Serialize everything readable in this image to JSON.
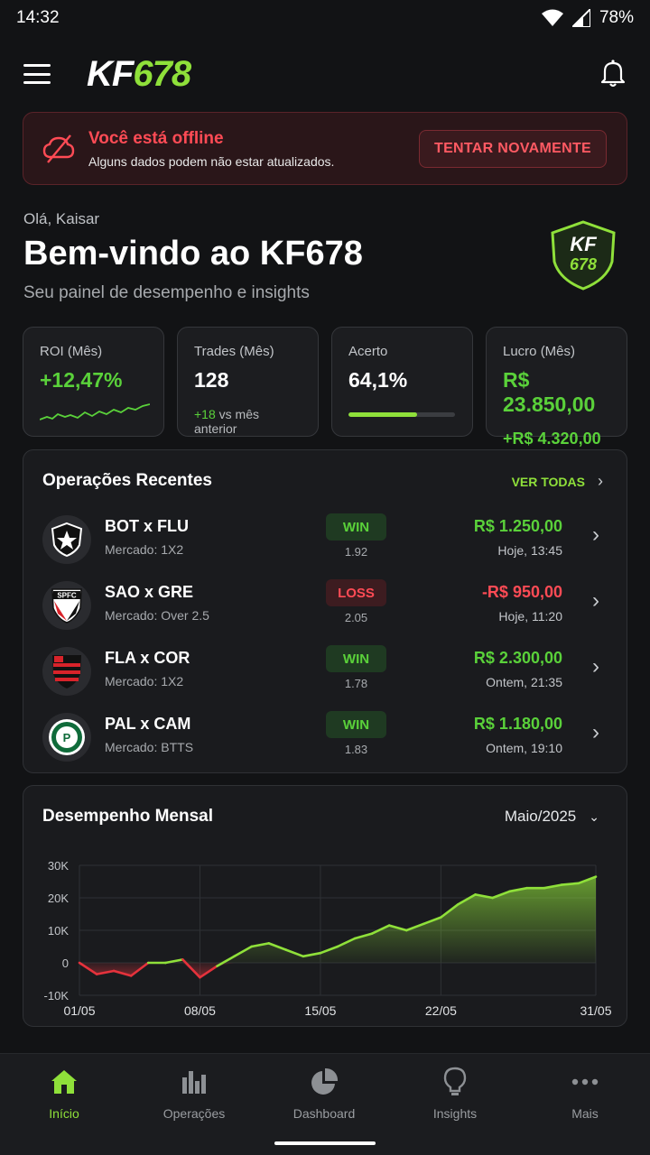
{
  "status": {
    "time": "14:32",
    "battery": "78%"
  },
  "header": {
    "logo_kf": "KF",
    "logo_num": "678"
  },
  "offline": {
    "title": "Você está offline",
    "subtitle": "Alguns dados podem não estar atualizados.",
    "retry_label": "TENTAR NOVAMENTE"
  },
  "welcome": {
    "greeting": "Olá, Kaisar",
    "title": "Bem-vindo ao KF678",
    "subtitle": "Seu painel de desempenho e insights",
    "badge_top": "KF",
    "badge_bottom": "678"
  },
  "stats": {
    "roi": {
      "label": "ROI (Mês)",
      "value": "+12,47%"
    },
    "trades": {
      "label": "Trades (Mês)",
      "value": "128",
      "delta": "+18",
      "delta_suffix": " vs mês anterior"
    },
    "accuracy": {
      "label": "Acerto",
      "value": "64,1%",
      "progress": 0.641
    },
    "profit": {
      "label": "Lucro (Mês)",
      "value": "R$ 23.850,00",
      "delta": "+R$ 4.320,00"
    }
  },
  "recent": {
    "title": "Operações Recentes",
    "see_all": "VER TODAS",
    "items": [
      {
        "match": "BOT x FLU",
        "market": "Mercado: 1X2",
        "result": "WIN",
        "odd": "1.92",
        "amount": "R$ 1.250,00",
        "time": "Hoje, 13:45"
      },
      {
        "match": "SAO x GRE",
        "market": "Mercado: Over 2.5",
        "result": "LOSS",
        "odd": "2.05",
        "amount": "-R$ 950,00",
        "time": "Hoje, 11:20",
        "crest_text": "SPFC"
      },
      {
        "match": "FLA x COR",
        "market": "Mercado: 1X2",
        "result": "WIN",
        "odd": "1.78",
        "amount": "R$ 2.300,00",
        "time": "Ontem, 21:35"
      },
      {
        "match": "PAL x CAM",
        "market": "Mercado: BTTS",
        "result": "WIN",
        "odd": "1.83",
        "amount": "R$ 1.180,00",
        "time": "Ontem, 19:10"
      }
    ]
  },
  "performance": {
    "title": "Desempenho Mensal",
    "month": "Maio/2025"
  },
  "chart_data": {
    "type": "area",
    "title": "Desempenho Mensal",
    "x": [
      1,
      2,
      3,
      4,
      5,
      6,
      7,
      8,
      9,
      10,
      11,
      12,
      13,
      14,
      15,
      16,
      17,
      18,
      19,
      20,
      21,
      22,
      23,
      24,
      25,
      26,
      27,
      28,
      29,
      30,
      31
    ],
    "values": [
      0,
      -3500,
      -2500,
      -4000,
      0,
      0,
      1000,
      -4500,
      -1000,
      2000,
      5000,
      6000,
      4000,
      2000,
      3000,
      5000,
      7500,
      9000,
      11500,
      10000,
      12000,
      14000,
      18000,
      21000,
      20000,
      22000,
      23000,
      23000,
      24000,
      24500,
      26500
    ],
    "xticks": [
      "01/05",
      "08/05",
      "15/05",
      "22/05",
      "31/05"
    ],
    "yticks": [
      "30K",
      "20K",
      "10K",
      "0",
      "-10K"
    ],
    "ylim": [
      -10000,
      30000
    ],
    "colors": {
      "positive": "#8fe03a",
      "negative": "#e5323c"
    },
    "grid": true
  },
  "nav": {
    "items": [
      {
        "label": "Início",
        "icon": "home-icon",
        "active": true
      },
      {
        "label": "Operações",
        "icon": "bar-chart-icon",
        "active": false
      },
      {
        "label": "Dashboard",
        "icon": "pie-chart-icon",
        "active": false
      },
      {
        "label": "Insights",
        "icon": "lightbulb-icon",
        "active": false
      },
      {
        "label": "Mais",
        "icon": "more-icon",
        "active": false
      }
    ]
  }
}
